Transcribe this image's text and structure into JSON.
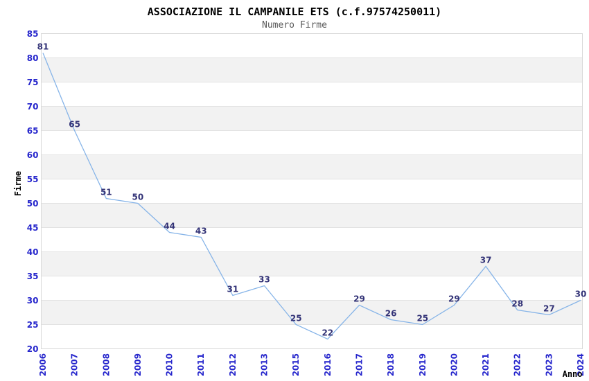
{
  "header": {
    "title": "ASSOCIAZIONE IL CAMPANILE ETS (c.f.97574250011)",
    "subtitle": "Numero Firme"
  },
  "chart_data": {
    "type": "line",
    "title": "ASSOCIAZIONE IL CAMPANILE ETS (c.f.97574250011)",
    "subtitle": "Numero Firme",
    "xlabel": "Anno",
    "ylabel": "Firme",
    "categories": [
      "2006",
      "2007",
      "2008",
      "2009",
      "2010",
      "2011",
      "2012",
      "2013",
      "2015",
      "2016",
      "2017",
      "2018",
      "2019",
      "2020",
      "2021",
      "2022",
      "2023",
      "2024"
    ],
    "values": [
      81,
      65,
      51,
      50,
      44,
      43,
      31,
      33,
      25,
      22,
      29,
      26,
      25,
      29,
      37,
      28,
      27,
      30
    ],
    "ylim": [
      20,
      85
    ],
    "ytick_step": 5,
    "ytick_labels": [
      "20",
      "25",
      "30",
      "35",
      "40",
      "45",
      "50",
      "55",
      "60",
      "65",
      "70",
      "75",
      "80",
      "85"
    ],
    "grid": "horizontal-only",
    "legend_position": "none",
    "band_fill": "alternating horizontal stripes, white at top interval (85-80)",
    "colors": {
      "title": "#000000",
      "subtitle": "#595959",
      "line": "#86b4e8",
      "data_label": "#333377",
      "tick_label": "#2626cc",
      "axis_title": "#000000",
      "band": "#f2f2f2",
      "gridline": "#e2e2e2",
      "plot_border": "#d9d9d9",
      "background": "#ffffff"
    }
  }
}
